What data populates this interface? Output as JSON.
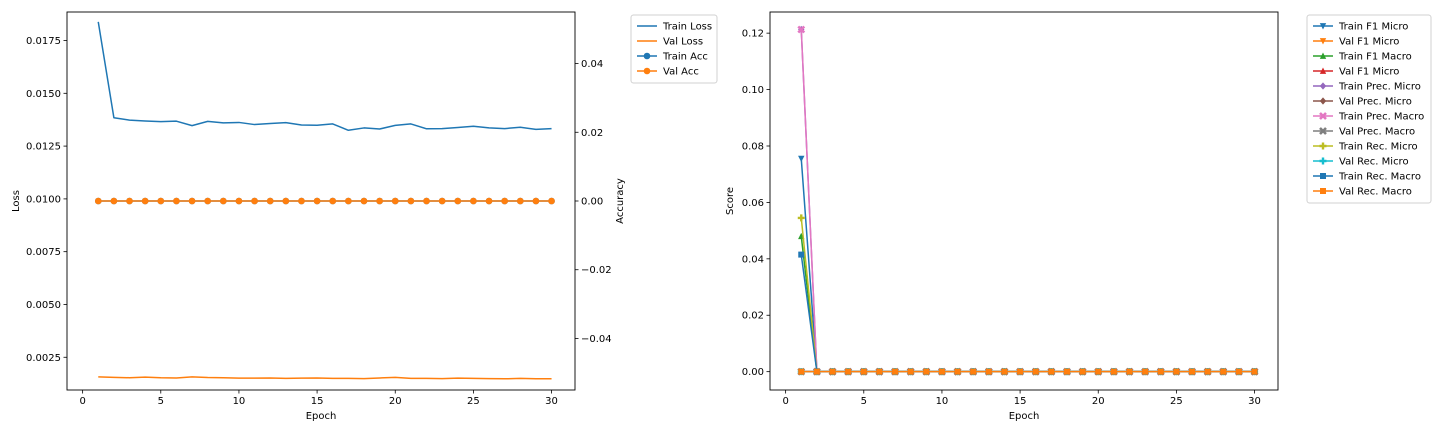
{
  "chart_data": [
    {
      "type": "line",
      "xlabel": "Epoch",
      "ylabel": "Loss",
      "y2label": "Accuracy",
      "xlim": [
        -1.0,
        31.5
      ],
      "xticks": [
        0,
        5,
        10,
        15,
        20,
        25,
        30
      ],
      "ylim": [
        0.00095,
        0.01885
      ],
      "yticks": [
        0.0025,
        0.005,
        0.0075,
        0.01,
        0.0125,
        0.015,
        0.0175
      ],
      "ytick_labels": [
        "0.0025",
        "0.0050",
        "0.0075",
        "0.0100",
        "0.0125",
        "0.0150",
        "0.0175"
      ],
      "y2lim": [
        -0.055,
        0.055
      ],
      "y2ticks": [
        -0.04,
        -0.02,
        0.0,
        0.02,
        0.04
      ],
      "y2tick_labels": [
        "−0.04",
        "−0.02",
        "0.00",
        "0.02",
        "0.04"
      ],
      "grid": false,
      "legend_position": "outside-top-right",
      "series": [
        {
          "name": "Train Loss",
          "axis": "left",
          "color": "#1f77b4",
          "marker": "none",
          "x": [
            1,
            2,
            3,
            4,
            5,
            6,
            7,
            8,
            9,
            10,
            11,
            12,
            13,
            14,
            15,
            16,
            17,
            18,
            19,
            20,
            21,
            22,
            23,
            24,
            25,
            26,
            27,
            28,
            29,
            30
          ],
          "values": [
            0.01838,
            0.01384,
            0.01373,
            0.01369,
            0.01366,
            0.01368,
            0.01347,
            0.01367,
            0.0136,
            0.01362,
            0.01352,
            0.01357,
            0.01361,
            0.0135,
            0.01349,
            0.01355,
            0.01325,
            0.01336,
            0.01331,
            0.01348,
            0.01355,
            0.01332,
            0.01333,
            0.01338,
            0.01344,
            0.01336,
            0.01333,
            0.01339,
            0.01329,
            0.01333
          ]
        },
        {
          "name": "Val Loss",
          "axis": "left",
          "color": "#ff7f0e",
          "marker": "none",
          "x": [
            1,
            2,
            3,
            4,
            5,
            6,
            7,
            8,
            9,
            10,
            11,
            12,
            13,
            14,
            15,
            16,
            17,
            18,
            19,
            20,
            21,
            22,
            23,
            24,
            25,
            26,
            27,
            28,
            29,
            30
          ],
          "values": [
            0.00157,
            0.00155,
            0.00153,
            0.00156,
            0.00153,
            0.00152,
            0.00157,
            0.00154,
            0.00153,
            0.00151,
            0.00151,
            0.00152,
            0.0015,
            0.00151,
            0.00152,
            0.0015,
            0.0015,
            0.00149,
            0.00152,
            0.00155,
            0.0015,
            0.0015,
            0.00149,
            0.00151,
            0.0015,
            0.00149,
            0.00148,
            0.0015,
            0.00148,
            0.00148
          ]
        },
        {
          "name": "Train Acc",
          "axis": "right",
          "color": "#1f77b4",
          "marker": "circle",
          "x": [
            1,
            2,
            3,
            4,
            5,
            6,
            7,
            8,
            9,
            10,
            11,
            12,
            13,
            14,
            15,
            16,
            17,
            18,
            19,
            20,
            21,
            22,
            23,
            24,
            25,
            26,
            27,
            28,
            29,
            30
          ],
          "values": [
            0,
            0,
            0,
            0,
            0,
            0,
            0,
            0,
            0,
            0,
            0,
            0,
            0,
            0,
            0,
            0,
            0,
            0,
            0,
            0,
            0,
            0,
            0,
            0,
            0,
            0,
            0,
            0,
            0,
            0
          ]
        },
        {
          "name": "Val Acc",
          "axis": "right",
          "color": "#ff7f0e",
          "marker": "circle",
          "x": [
            1,
            2,
            3,
            4,
            5,
            6,
            7,
            8,
            9,
            10,
            11,
            12,
            13,
            14,
            15,
            16,
            17,
            18,
            19,
            20,
            21,
            22,
            23,
            24,
            25,
            26,
            27,
            28,
            29,
            30
          ],
          "values": [
            0,
            0,
            0,
            0,
            0,
            0,
            0,
            0,
            0,
            0,
            0,
            0,
            0,
            0,
            0,
            0,
            0,
            0,
            0,
            0,
            0,
            0,
            0,
            0,
            0,
            0,
            0,
            0,
            0,
            0
          ]
        }
      ]
    },
    {
      "type": "line",
      "xlabel": "Epoch",
      "ylabel": "Score",
      "xlim": [
        -1.0,
        31.5
      ],
      "xticks": [
        0,
        5,
        10,
        15,
        20,
        25,
        30
      ],
      "ylim": [
        -0.0065,
        0.1275
      ],
      "yticks": [
        0.0,
        0.02,
        0.04,
        0.06,
        0.08,
        0.1,
        0.12
      ],
      "ytick_labels": [
        "0.00",
        "0.02",
        "0.04",
        "0.06",
        "0.08",
        "0.10",
        "0.12"
      ],
      "grid": false,
      "legend_position": "outside-top-right",
      "series": [
        {
          "name": "Train F1 Micro",
          "color": "#1f77b4",
          "marker": "triangle-down",
          "x": [
            1,
            2,
            3,
            4,
            5,
            6,
            7,
            8,
            9,
            10,
            11,
            12,
            13,
            14,
            15,
            16,
            17,
            18,
            19,
            20,
            21,
            22,
            23,
            24,
            25,
            26,
            27,
            28,
            29,
            30
          ],
          "values": [
            0.0755,
            0,
            0,
            0,
            0,
            0,
            0,
            0,
            0,
            0,
            0,
            0,
            0,
            0,
            0,
            0,
            0,
            0,
            0,
            0,
            0,
            0,
            0,
            0,
            0,
            0,
            0,
            0,
            0,
            0
          ]
        },
        {
          "name": "Val F1 Micro",
          "color": "#ff7f0e",
          "marker": "triangle-down",
          "x": [
            1,
            2,
            3,
            4,
            5,
            6,
            7,
            8,
            9,
            10,
            11,
            12,
            13,
            14,
            15,
            16,
            17,
            18,
            19,
            20,
            21,
            22,
            23,
            24,
            25,
            26,
            27,
            28,
            29,
            30
          ],
          "values": [
            0,
            0,
            0,
            0,
            0,
            0,
            0,
            0,
            0,
            0,
            0,
            0,
            0,
            0,
            0,
            0,
            0,
            0,
            0,
            0,
            0,
            0,
            0,
            0,
            0,
            0,
            0,
            0,
            0,
            0
          ]
        },
        {
          "name": "Train F1 Macro",
          "color": "#2ca02c",
          "marker": "triangle-up",
          "x": [
            1,
            2,
            3,
            4,
            5,
            6,
            7,
            8,
            9,
            10,
            11,
            12,
            13,
            14,
            15,
            16,
            17,
            18,
            19,
            20,
            21,
            22,
            23,
            24,
            25,
            26,
            27,
            28,
            29,
            30
          ],
          "values": [
            0.048,
            0,
            0,
            0,
            0,
            0,
            0,
            0,
            0,
            0,
            0,
            0,
            0,
            0,
            0,
            0,
            0,
            0,
            0,
            0,
            0,
            0,
            0,
            0,
            0,
            0,
            0,
            0,
            0,
            0
          ]
        },
        {
          "name": "Val F1 Micro",
          "color": "#d62728",
          "marker": "triangle-up",
          "x": [
            1,
            2,
            3,
            4,
            5,
            6,
            7,
            8,
            9,
            10,
            11,
            12,
            13,
            14,
            15,
            16,
            17,
            18,
            19,
            20,
            21,
            22,
            23,
            24,
            25,
            26,
            27,
            28,
            29,
            30
          ],
          "values": [
            0,
            0,
            0,
            0,
            0,
            0,
            0,
            0,
            0,
            0,
            0,
            0,
            0,
            0,
            0,
            0,
            0,
            0,
            0,
            0,
            0,
            0,
            0,
            0,
            0,
            0,
            0,
            0,
            0,
            0
          ]
        },
        {
          "name": "Train Prec. Micro",
          "color": "#9467bd",
          "marker": "diamond",
          "x": [
            1,
            2,
            3,
            4,
            5,
            6,
            7,
            8,
            9,
            10,
            11,
            12,
            13,
            14,
            15,
            16,
            17,
            18,
            19,
            20,
            21,
            22,
            23,
            24,
            25,
            26,
            27,
            28,
            29,
            30
          ],
          "values": [
            0.1213,
            0,
            0,
            0,
            0,
            0,
            0,
            0,
            0,
            0,
            0,
            0,
            0,
            0,
            0,
            0,
            0,
            0,
            0,
            0,
            0,
            0,
            0,
            0,
            0,
            0,
            0,
            0,
            0,
            0
          ]
        },
        {
          "name": "Val Prec. Micro",
          "color": "#8c564b",
          "marker": "diamond",
          "x": [
            1,
            2,
            3,
            4,
            5,
            6,
            7,
            8,
            9,
            10,
            11,
            12,
            13,
            14,
            15,
            16,
            17,
            18,
            19,
            20,
            21,
            22,
            23,
            24,
            25,
            26,
            27,
            28,
            29,
            30
          ],
          "values": [
            0,
            0,
            0,
            0,
            0,
            0,
            0,
            0,
            0,
            0,
            0,
            0,
            0,
            0,
            0,
            0,
            0,
            0,
            0,
            0,
            0,
            0,
            0,
            0,
            0,
            0,
            0,
            0,
            0,
            0
          ]
        },
        {
          "name": "Train Prec. Macro",
          "color": "#e377c2",
          "marker": "x",
          "x": [
            1,
            2,
            3,
            4,
            5,
            6,
            7,
            8,
            9,
            10,
            11,
            12,
            13,
            14,
            15,
            16,
            17,
            18,
            19,
            20,
            21,
            22,
            23,
            24,
            25,
            26,
            27,
            28,
            29,
            30
          ],
          "values": [
            0.1213,
            0,
            0,
            0,
            0,
            0,
            0,
            0,
            0,
            0,
            0,
            0,
            0,
            0,
            0,
            0,
            0,
            0,
            0,
            0,
            0,
            0,
            0,
            0,
            0,
            0,
            0,
            0,
            0,
            0
          ]
        },
        {
          "name": "Val Prec. Macro",
          "color": "#7f7f7f",
          "marker": "x",
          "x": [
            1,
            2,
            3,
            4,
            5,
            6,
            7,
            8,
            9,
            10,
            11,
            12,
            13,
            14,
            15,
            16,
            17,
            18,
            19,
            20,
            21,
            22,
            23,
            24,
            25,
            26,
            27,
            28,
            29,
            30
          ],
          "values": [
            0,
            0,
            0,
            0,
            0,
            0,
            0,
            0,
            0,
            0,
            0,
            0,
            0,
            0,
            0,
            0,
            0,
            0,
            0,
            0,
            0,
            0,
            0,
            0,
            0,
            0,
            0,
            0,
            0,
            0
          ]
        },
        {
          "name": "Train Rec. Micro",
          "color": "#bcbd22",
          "marker": "plus",
          "x": [
            1,
            2,
            3,
            4,
            5,
            6,
            7,
            8,
            9,
            10,
            11,
            12,
            13,
            14,
            15,
            16,
            17,
            18,
            19,
            20,
            21,
            22,
            23,
            24,
            25,
            26,
            27,
            28,
            29,
            30
          ],
          "values": [
            0.0545,
            0,
            0,
            0,
            0,
            0,
            0,
            0,
            0,
            0,
            0,
            0,
            0,
            0,
            0,
            0,
            0,
            0,
            0,
            0,
            0,
            0,
            0,
            0,
            0,
            0,
            0,
            0,
            0,
            0
          ]
        },
        {
          "name": "Val Rec. Micro",
          "color": "#17becf",
          "marker": "plus",
          "x": [
            1,
            2,
            3,
            4,
            5,
            6,
            7,
            8,
            9,
            10,
            11,
            12,
            13,
            14,
            15,
            16,
            17,
            18,
            19,
            20,
            21,
            22,
            23,
            24,
            25,
            26,
            27,
            28,
            29,
            30
          ],
          "values": [
            0,
            0,
            0,
            0,
            0,
            0,
            0,
            0,
            0,
            0,
            0,
            0,
            0,
            0,
            0,
            0,
            0,
            0,
            0,
            0,
            0,
            0,
            0,
            0,
            0,
            0,
            0,
            0,
            0,
            0
          ]
        },
        {
          "name": "Train Rec. Macro",
          "color": "#1f77b4",
          "marker": "square",
          "x": [
            1,
            2,
            3,
            4,
            5,
            6,
            7,
            8,
            9,
            10,
            11,
            12,
            13,
            14,
            15,
            16,
            17,
            18,
            19,
            20,
            21,
            22,
            23,
            24,
            25,
            26,
            27,
            28,
            29,
            30
          ],
          "values": [
            0.0415,
            0,
            0,
            0,
            0,
            0,
            0,
            0,
            0,
            0,
            0,
            0,
            0,
            0,
            0,
            0,
            0,
            0,
            0,
            0,
            0,
            0,
            0,
            0,
            0,
            0,
            0,
            0,
            0,
            0
          ]
        },
        {
          "name": "Val Rec. Macro",
          "color": "#ff7f0e",
          "marker": "square",
          "x": [
            1,
            2,
            3,
            4,
            5,
            6,
            7,
            8,
            9,
            10,
            11,
            12,
            13,
            14,
            15,
            16,
            17,
            18,
            19,
            20,
            21,
            22,
            23,
            24,
            25,
            26,
            27,
            28,
            29,
            30
          ],
          "values": [
            0,
            0,
            0,
            0,
            0,
            0,
            0,
            0,
            0,
            0,
            0,
            0,
            0,
            0,
            0,
            0,
            0,
            0,
            0,
            0,
            0,
            0,
            0,
            0,
            0,
            0,
            0,
            0,
            0,
            0
          ]
        }
      ]
    }
  ]
}
